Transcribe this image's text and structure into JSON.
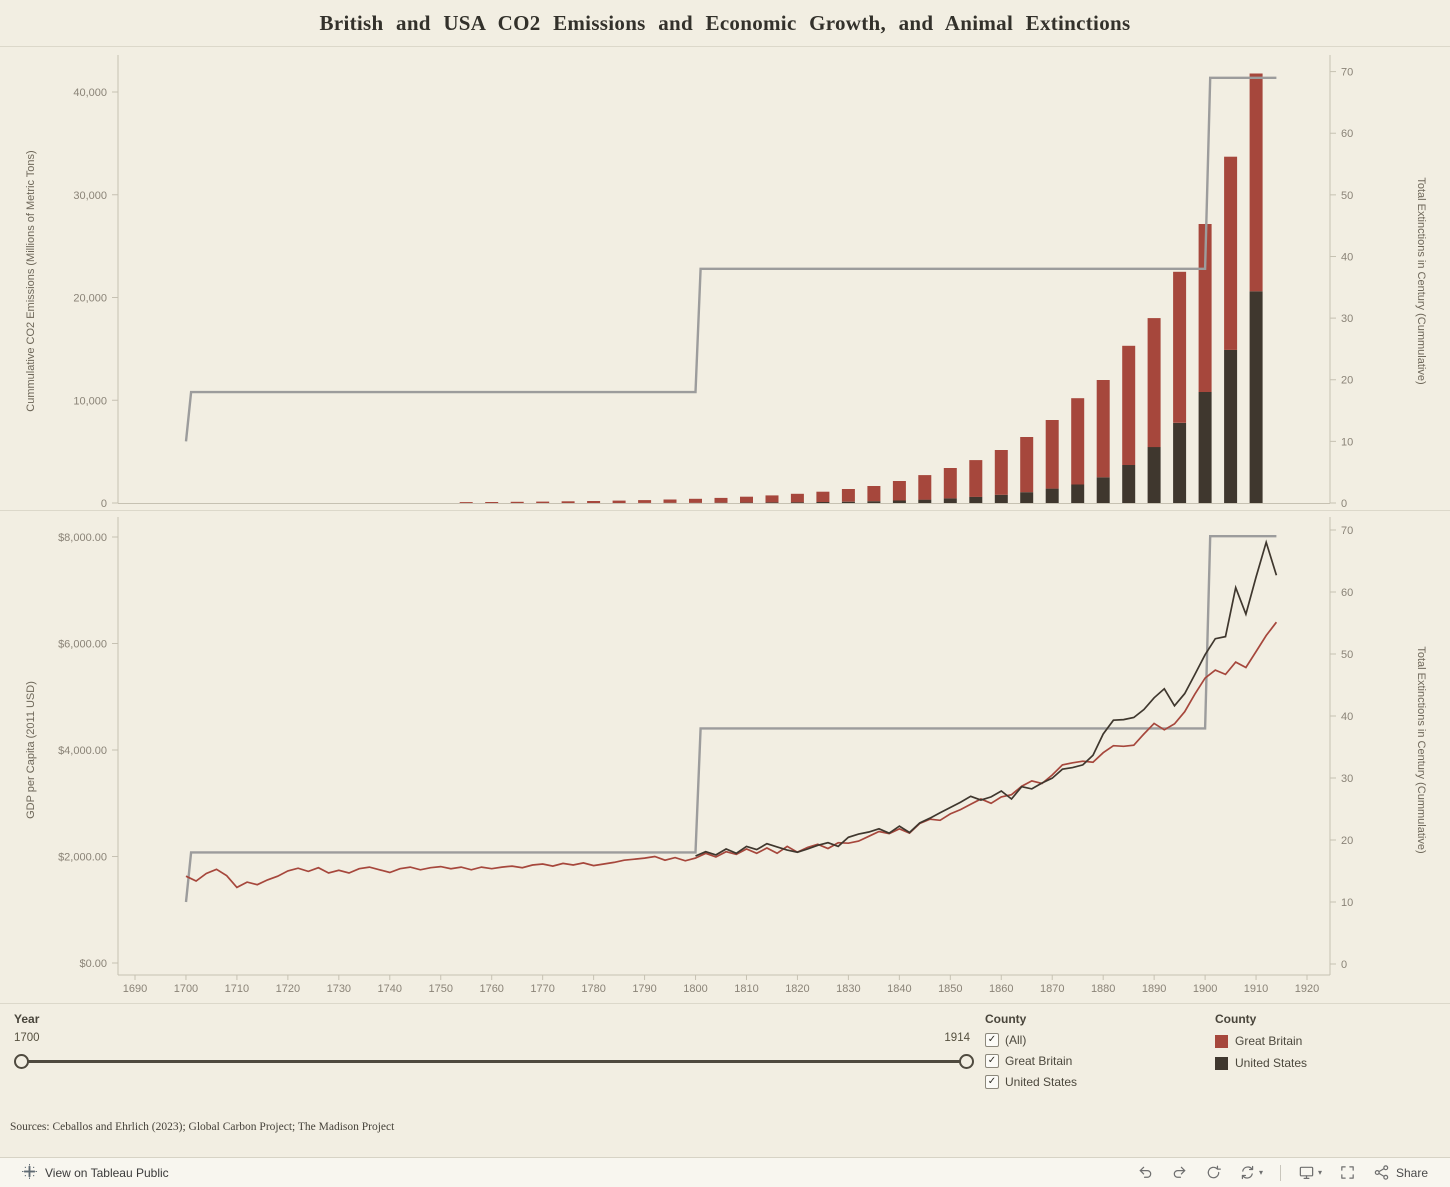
{
  "title": "British and USA CO2 Emissions and Economic Growth, and Animal Extinctions",
  "colors": {
    "background": "#f2eee2",
    "great_britain": "#a6473c",
    "united_states": "#3f372e",
    "extinction_line": "#9c9c9c",
    "axis_text": "#8a8377"
  },
  "x_axis": {
    "ticks": {
      "values": [
        1690,
        1700,
        1710,
        1720,
        1730,
        1740,
        1750,
        1760,
        1770,
        1780,
        1790,
        1800,
        1810,
        1820,
        1830,
        1840,
        1850,
        1860,
        1870,
        1880,
        1890,
        1900,
        1910,
        1920
      ],
      "labels": [
        "1690",
        "1700",
        "1710",
        "1720",
        "1730",
        "1740",
        "1750",
        "1760",
        "1770",
        "1780",
        "1790",
        "1800",
        "1810",
        "1820",
        "1830",
        "1840",
        "1850",
        "1860",
        "1870",
        "1880",
        "1890",
        "1900",
        "1910",
        "1920"
      ]
    }
  },
  "chart_data": [
    {
      "type": "bar",
      "title": "Cumulative CO2 emissions (stacked bars) with cumulative extinctions step line",
      "ylabel": "Cummulative CO2 Emissions (Millions of Metric Tons)",
      "y2label": "Total Extinctions in Century (Cummulative)",
      "ylim": [
        0,
        42000
      ],
      "y2lim": [
        0,
        70
      ],
      "y_ticks": {
        "values": [
          0,
          10000,
          20000,
          30000,
          40000
        ],
        "labels": [
          "0",
          "10,000",
          "20,000",
          "30,000",
          "40,000"
        ]
      },
      "y2_ticks": {
        "values": [
          0,
          10,
          20,
          30,
          40,
          50,
          60,
          70
        ],
        "labels": [
          "0",
          "10",
          "20",
          "30",
          "40",
          "50",
          "60",
          "70"
        ]
      },
      "categories": [
        1755,
        1760,
        1765,
        1770,
        1775,
        1780,
        1785,
        1790,
        1795,
        1800,
        1805,
        1810,
        1815,
        1820,
        1825,
        1830,
        1835,
        1840,
        1845,
        1850,
        1855,
        1860,
        1865,
        1870,
        1875,
        1880,
        1885,
        1890,
        1895,
        1900,
        1905,
        1910
      ],
      "stack_order": "bottom-to-top",
      "series": [
        {
          "name": "United States",
          "color": "#3f372e",
          "values": [
            0,
            0,
            0,
            0,
            0,
            0,
            0,
            10,
            15,
            20,
            30,
            40,
            55,
            75,
            100,
            130,
            175,
            240,
            330,
            450,
            600,
            800,
            1050,
            1400,
            1800,
            2500,
            3700,
            5450,
            7800,
            10800,
            14900,
            20600
          ]
        },
        {
          "name": "Great Britain",
          "color": "#a6473c",
          "values": [
            85,
            100,
            120,
            140,
            165,
            195,
            230,
            270,
            325,
            390,
            470,
            570,
            685,
            825,
            1000,
            1230,
            1475,
            1900,
            2390,
            2960,
            3580,
            4360,
            5370,
            6680,
            8400,
            9470,
            11600,
            12550,
            14700,
            16350,
            18800,
            21200
          ]
        }
      ],
      "extinction_line": {
        "x": [
          1700,
          1701,
          1800,
          1801,
          1900,
          1901,
          1914
        ],
        "y": [
          10,
          18,
          18,
          38,
          38,
          69,
          69
        ]
      }
    },
    {
      "type": "line",
      "title": "GDP per capita with cumulative extinctions step line",
      "ylabel": "GDP per Capita (2011 USD)",
      "y2label": "Total Extinctions in Century (Cummulative)",
      "ylim": [
        0,
        8400
      ],
      "y2lim": [
        0,
        70
      ],
      "y_ticks": {
        "values": [
          0,
          2000,
          4000,
          6000,
          8000
        ],
        "labels": [
          "$0.00",
          "$2,000.00",
          "$4,000.00",
          "$6,000.00",
          "$8,000.00"
        ]
      },
      "y2_ticks": {
        "values": [
          0,
          10,
          20,
          30,
          40,
          50,
          60,
          70
        ],
        "labels": [
          "0",
          "10",
          "20",
          "30",
          "40",
          "50",
          "60",
          "70"
        ]
      },
      "series": [
        {
          "name": "Great Britain",
          "color": "#a6473c",
          "x_start": 1700,
          "x_step": 2,
          "values": [
            1630,
            1540,
            1680,
            1760,
            1640,
            1420,
            1520,
            1470,
            1560,
            1630,
            1730,
            1780,
            1720,
            1790,
            1690,
            1740,
            1690,
            1770,
            1800,
            1750,
            1700,
            1770,
            1800,
            1750,
            1790,
            1810,
            1770,
            1800,
            1750,
            1800,
            1770,
            1800,
            1820,
            1790,
            1840,
            1860,
            1820,
            1870,
            1840,
            1880,
            1830,
            1860,
            1890,
            1930,
            1950,
            1970,
            2000,
            1930,
            1980,
            1920,
            1970,
            2060,
            1990,
            2090,
            2040,
            2140,
            2060,
            2160,
            2060,
            2190,
            2080,
            2170,
            2230,
            2150,
            2260,
            2250,
            2290,
            2380,
            2470,
            2430,
            2520,
            2440,
            2620,
            2700,
            2680,
            2800,
            2880,
            2980,
            3080,
            3000,
            3120,
            3160,
            3320,
            3420,
            3370,
            3530,
            3720,
            3760,
            3790,
            3770,
            3950,
            4080,
            4070,
            4090,
            4300,
            4500,
            4380,
            4490,
            4720,
            5050,
            5350,
            5500,
            5420,
            5650,
            5550,
            5850,
            6150,
            6400
          ]
        },
        {
          "name": "United States",
          "color": "#3f372e",
          "x_start": 1800,
          "x_step": 2,
          "values": [
            2010,
            2090,
            2030,
            2140,
            2060,
            2190,
            2130,
            2240,
            2180,
            2120,
            2080,
            2140,
            2210,
            2260,
            2190,
            2360,
            2420,
            2460,
            2520,
            2440,
            2570,
            2450,
            2630,
            2720,
            2820,
            2920,
            3020,
            3130,
            3060,
            3120,
            3230,
            3080,
            3310,
            3270,
            3380,
            3470,
            3640,
            3670,
            3720,
            3900,
            4300,
            4560,
            4570,
            4610,
            4760,
            4980,
            5150,
            4830,
            5060,
            5420,
            5790,
            6090,
            6130,
            7050,
            6550,
            7250,
            7900,
            7280
          ]
        }
      ],
      "extinction_line": {
        "x": [
          1700,
          1701,
          1800,
          1801,
          1900,
          1901,
          1914
        ],
        "y": [
          10,
          18,
          18,
          38,
          38,
          69,
          69
        ]
      }
    }
  ],
  "controls": {
    "year_filter": {
      "label": "Year",
      "min": "1700",
      "max": "1914"
    },
    "county_filter": {
      "label": "County",
      "options": [
        {
          "label": "(All)",
          "checked": true
        },
        {
          "label": "Great Britain",
          "checked": true
        },
        {
          "label": "United States",
          "checked": true
        }
      ]
    },
    "legend": {
      "label": "County",
      "items": [
        {
          "label": "Great Britain",
          "color": "#a6473c"
        },
        {
          "label": "United States",
          "color": "#3f372e"
        }
      ]
    }
  },
  "sources": "Sources: Ceballos and Ehrlich (2023); Global Carbon Project; The Madison Project",
  "toolbar": {
    "view_on_tableau_label": "View on Tableau Public",
    "share_label": "Share",
    "icons": [
      "undo",
      "redo",
      "reset",
      "refresh",
      "display-options",
      "fullscreen",
      "share"
    ]
  }
}
